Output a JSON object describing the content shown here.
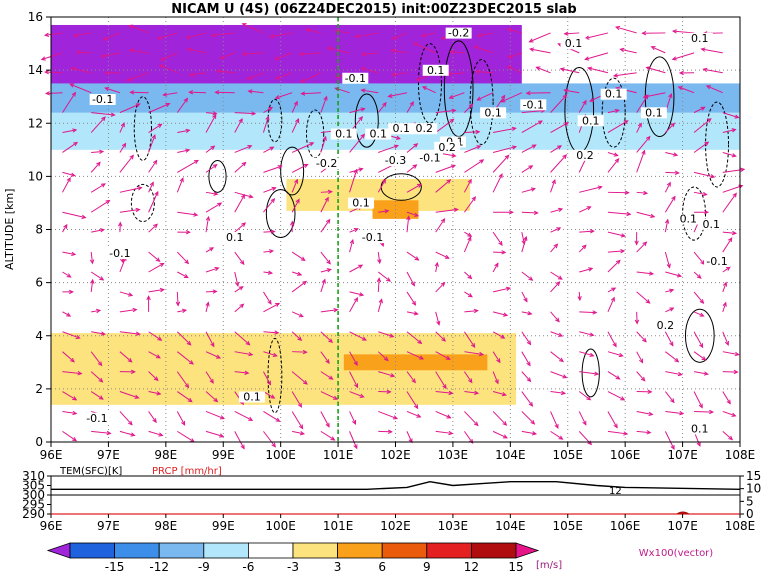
{
  "chart_data": [
    {
      "type": "heatmap",
      "title": "NICAM U (4S) (06Z24DEC2015) init:00Z23DEC2015 slab",
      "ylabel": "ALTITUDE [km]",
      "x_ticks": [
        "96E",
        "97E",
        "98E",
        "99E",
        "100E",
        "101E",
        "102E",
        "103E",
        "104E",
        "105E",
        "106E",
        "107E",
        "108E"
      ],
      "y_ticks": [
        "0",
        "2",
        "4",
        "6",
        "8",
        "10",
        "12",
        "14",
        "16"
      ],
      "xlim": [
        96,
        108
      ],
      "ylim": [
        0,
        16
      ],
      "marker_longitude": 101,
      "contour_labels": [
        "-0.1",
        "-0.2",
        "0.1",
        "0.1",
        "-0.1",
        "0.1",
        "0.1",
        "0.1",
        "0.1",
        "0.1",
        "0.2",
        "-0.1",
        "0.2",
        "-0.3",
        "-0.1",
        "-0.2",
        "-0.1",
        "0.2",
        "0.1",
        "0.1",
        "0.1",
        "-0.1",
        "0.1",
        "0.1",
        "0.1",
        "-0.1",
        "-0.1",
        "0.2",
        "0.1",
        "0.1",
        "-0.1",
        "0.1"
      ],
      "bands": [
        {
          "y": [
            13.3,
            15.7
          ],
          "x": [
            96,
            104.2
          ],
          "value": -15
        },
        {
          "y": [
            12.3,
            13.5
          ],
          "x": [
            96,
            108
          ],
          "value": -6
        },
        {
          "y": [
            11.0,
            12.4
          ],
          "x": [
            96,
            108
          ],
          "value": -3
        },
        {
          "y": [
            8.4,
            10.1
          ],
          "x": [
            98.6,
            103.8
          ],
          "value": 3
        },
        {
          "y": [
            8.7,
            9.9
          ],
          "x": [
            100.1,
            103.3
          ],
          "value": 6
        },
        {
          "y": [
            8.4,
            9.1
          ],
          "x": [
            101.6,
            102.4
          ],
          "value": 9
        },
        {
          "y": [
            1.3,
            4.4
          ],
          "x": [
            96,
            108
          ],
          "value": 3
        },
        {
          "y": [
            1.4,
            4.1
          ],
          "x": [
            96,
            104.1
          ],
          "value": 6
        },
        {
          "y": [
            2.7,
            3.3
          ],
          "x": [
            101.1,
            103.6
          ],
          "value": 9
        }
      ]
    },
    {
      "type": "line",
      "labels": [
        "TEM(SFC)[K]",
        "PRCP [mm/hr]"
      ],
      "x": [
        96,
        101.5,
        102.2,
        102.6,
        103,
        103.5,
        104,
        104.8,
        105.5,
        106,
        108
      ],
      "series": [
        {
          "name": "TEM(SFC)[K]",
          "values": [
            303,
            303,
            304,
            307,
            305,
            306,
            307,
            307,
            305,
            304,
            303
          ],
          "color": "#000000"
        }
      ],
      "left_ticks": [
        "290",
        "295",
        "300",
        "305",
        "310"
      ],
      "right_ticks": [
        "0",
        "5",
        "10",
        "15"
      ],
      "contour_label": "12",
      "x_ticks": [
        "96E",
        "97E",
        "98E",
        "99E",
        "100E",
        "101E",
        "102E",
        "103E",
        "104E",
        "105E",
        "106E",
        "107E",
        "108E"
      ],
      "xlim": [
        96,
        108
      ],
      "ylim": [
        290,
        310
      ]
    }
  ],
  "colorbar": {
    "ticks": [
      "-15",
      "-12",
      "-9",
      "-6",
      "-3",
      "3",
      "6",
      "9",
      "12",
      "15"
    ],
    "unit": "[m/s]",
    "vector_label": "Wx100(vector)",
    "colors": [
      "#9f24da",
      "#1f62dd",
      "#3c8ee8",
      "#7ab8f0",
      "#b2e6fb",
      "#ffffff",
      "#fde37e",
      "#f9a11b",
      "#ea5c0c",
      "#e52020",
      "#b00e0e",
      "#e8158a"
    ]
  }
}
